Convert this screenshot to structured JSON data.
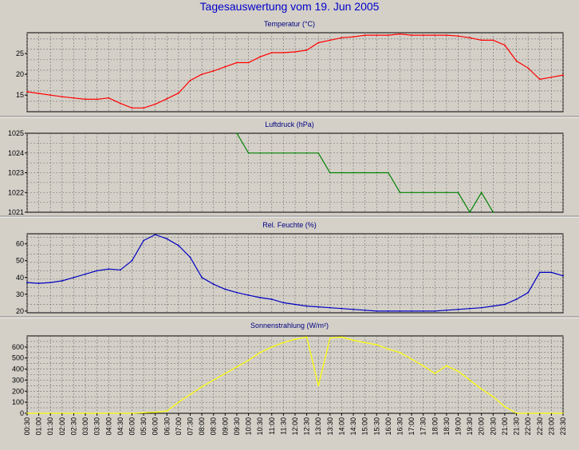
{
  "title": "Tagesauswertung vom 19. Jun 2005",
  "colors": {
    "temperature": "#ff0000",
    "pressure": "#008000",
    "humidity": "#0000c0",
    "radiation": "#ffff00",
    "plot_background": "#d4d0c8",
    "panel_title": "#000080"
  },
  "time_labels": [
    "00:30",
    "01:00",
    "01:30",
    "02:00",
    "02:30",
    "03:00",
    "03:30",
    "04:00",
    "04:30",
    "05:00",
    "05:30",
    "06:00",
    "06:30",
    "07:00",
    "07:30",
    "08:00",
    "08:30",
    "09:00",
    "09:30",
    "10:00",
    "10:30",
    "11:00",
    "11:30",
    "12:00",
    "12:30",
    "13:00",
    "13:30",
    "14:00",
    "14:30",
    "15:00",
    "15:30",
    "16:00",
    "16:30",
    "17:00",
    "17:30",
    "18:00",
    "18:30",
    "19:00",
    "19:30",
    "20:00",
    "20:30",
    "21:00",
    "21:30",
    "22:00",
    "22:30",
    "23:00",
    "23:30"
  ],
  "chart_data": [
    {
      "type": "line",
      "title": "Temperatur (°C)",
      "x_range": [
        "00:30",
        "23:30"
      ],
      "ylim": [
        11,
        30
      ],
      "yticks": [
        15,
        20,
        25
      ],
      "grid": true,
      "series": [
        {
          "color": "#ff0000",
          "x": [
            "00:30",
            "01:00",
            "01:30",
            "02:00",
            "02:30",
            "03:00",
            "03:30",
            "04:00",
            "04:30",
            "05:00",
            "05:30",
            "06:00",
            "06:30",
            "07:00",
            "07:30",
            "08:00",
            "08:30",
            "09:00",
            "09:30",
            "10:00",
            "10:30",
            "11:00",
            "11:30",
            "12:00",
            "12:30",
            "13:00",
            "13:30",
            "14:00",
            "14:30",
            "15:00",
            "15:30",
            "16:00",
            "16:30",
            "17:00",
            "17:30",
            "18:00",
            "18:30",
            "19:00",
            "19:30",
            "20:00",
            "20:30",
            "21:00",
            "21:30",
            "22:00",
            "22:30",
            "23:00",
            "23:30"
          ],
          "values": [
            15.8,
            15.4,
            15.0,
            14.6,
            14.3,
            14.0,
            14.0,
            14.3,
            13.0,
            11.9,
            11.9,
            12.8,
            14.1,
            15.5,
            18.5,
            20.0,
            20.8,
            21.8,
            22.8,
            22.8,
            24.2,
            25.2,
            25.2,
            25.4,
            25.8,
            27.6,
            28.2,
            28.8,
            29.0,
            29.4,
            29.4,
            29.4,
            29.7,
            29.4,
            29.4,
            29.4,
            29.4,
            29.2,
            28.8,
            28.2,
            28.2,
            27.0,
            23.2,
            21.5,
            18.8,
            19.3,
            19.8
          ]
        }
      ]
    },
    {
      "type": "line",
      "title": "Luftdruck (hPa)",
      "x_range": [
        "00:30",
        "23:30"
      ],
      "ylim": [
        1021,
        1025
      ],
      "yticks": [
        1021,
        1022,
        1023,
        1024,
        1025
      ],
      "grid": true,
      "series": [
        {
          "color": "#008000",
          "x": [
            "09:30",
            "10:00",
            "10:30",
            "11:00",
            "11:30",
            "12:00",
            "12:30",
            "13:00",
            "13:30",
            "14:00",
            "14:30",
            "15:00",
            "15:30",
            "16:00",
            "16:30",
            "17:00",
            "17:30",
            "18:00",
            "18:30",
            "19:00",
            "19:30",
            "20:00",
            "20:30"
          ],
          "values": [
            1025,
            1024,
            1024,
            1024,
            1024,
            1024,
            1024,
            1024,
            1023,
            1023,
            1023,
            1023,
            1023,
            1023,
            1022,
            1022,
            1022,
            1022,
            1022,
            1022,
            1021,
            1022,
            1021
          ]
        }
      ]
    },
    {
      "type": "line",
      "title": "Rel. Feuchte (%)",
      "x_range": [
        "00:30",
        "23:30"
      ],
      "ylim": [
        19,
        66
      ],
      "yticks": [
        20,
        30,
        40,
        50,
        60
      ],
      "grid": true,
      "series": [
        {
          "color": "#0000c0",
          "x": [
            "00:30",
            "01:00",
            "01:30",
            "02:00",
            "02:30",
            "03:00",
            "03:30",
            "04:00",
            "04:30",
            "05:00",
            "05:30",
            "06:00",
            "06:30",
            "07:00",
            "07:30",
            "08:00",
            "08:30",
            "09:00",
            "09:30",
            "10:00",
            "10:30",
            "11:00",
            "11:30",
            "12:00",
            "12:30",
            "13:00",
            "13:30",
            "14:00",
            "14:30",
            "15:00",
            "15:30",
            "16:00",
            "16:30",
            "17:00",
            "17:30",
            "18:00",
            "18:30",
            "19:00",
            "19:30",
            "20:00",
            "20:30",
            "21:00",
            "21:30",
            "22:00",
            "22:30",
            "23:00",
            "23:30"
          ],
          "values": [
            37,
            36.5,
            37,
            38,
            40,
            42,
            44,
            45,
            44.5,
            50,
            62,
            65.5,
            63,
            59,
            52,
            40,
            36,
            33,
            31,
            29.5,
            28,
            27,
            25,
            24,
            23,
            22.5,
            22,
            21.5,
            21,
            20.5,
            20,
            20,
            20,
            20,
            20,
            20,
            20.5,
            21,
            21.5,
            22,
            23,
            24,
            27,
            31,
            43,
            43,
            41
          ]
        }
      ]
    },
    {
      "type": "line",
      "title": "Sonnenstrahlung (W/m²)",
      "x_range": [
        "00:30",
        "23:30"
      ],
      "ylim": [
        0,
        700
      ],
      "yticks": [
        0,
        100,
        200,
        300,
        400,
        500,
        600
      ],
      "grid": true,
      "series": [
        {
          "color": "#ffff00",
          "x": [
            "00:30",
            "01:00",
            "01:30",
            "02:00",
            "02:30",
            "03:00",
            "03:30",
            "04:00",
            "04:30",
            "05:00",
            "05:30",
            "06:00",
            "06:30",
            "07:00",
            "07:30",
            "08:00",
            "08:30",
            "09:00",
            "09:30",
            "10:00",
            "10:30",
            "11:00",
            "11:30",
            "12:00",
            "12:30",
            "13:00",
            "13:30",
            "14:00",
            "14:30",
            "15:00",
            "15:30",
            "16:00",
            "16:30",
            "17:00",
            "17:30",
            "18:00",
            "18:30",
            "19:00",
            "19:30",
            "20:00",
            "20:30",
            "21:00",
            "21:30",
            "22:00",
            "22:30",
            "23:00",
            "23:30"
          ],
          "values": [
            0,
            0,
            0,
            0,
            0,
            0,
            0,
            0,
            0,
            0,
            5,
            10,
            20,
            100,
            170,
            240,
            300,
            360,
            420,
            480,
            550,
            600,
            640,
            670,
            690,
            250,
            680,
            690,
            660,
            640,
            620,
            580,
            550,
            490,
            430,
            360,
            430,
            380,
            300,
            220,
            150,
            60,
            0,
            0,
            0,
            0,
            0
          ]
        }
      ]
    }
  ]
}
